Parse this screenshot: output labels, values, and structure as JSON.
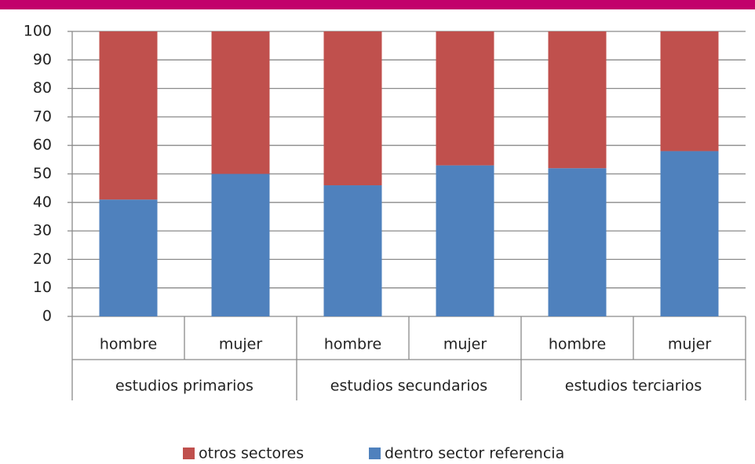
{
  "chart_data": {
    "type": "stacked-bar",
    "categories": [
      "hombre",
      "mujer",
      "hombre",
      "mujer",
      "hombre",
      "mujer"
    ],
    "groups": [
      "estudios primarios",
      "estudios secundarios",
      "estudios terciarios"
    ],
    "series": [
      {
        "name": "dentro sector referencia",
        "color": "#4f81bd",
        "values": [
          41,
          50,
          46,
          53,
          52,
          58
        ]
      },
      {
        "name": "otros sectores",
        "color": "#c0504d",
        "values": [
          59,
          50,
          54,
          47,
          48,
          42
        ]
      }
    ],
    "ylim": [
      0,
      100
    ],
    "yticks": [
      0,
      10,
      20,
      30,
      40,
      50,
      60,
      70,
      80,
      90,
      100
    ],
    "grid": true,
    "legend": "bottom"
  }
}
